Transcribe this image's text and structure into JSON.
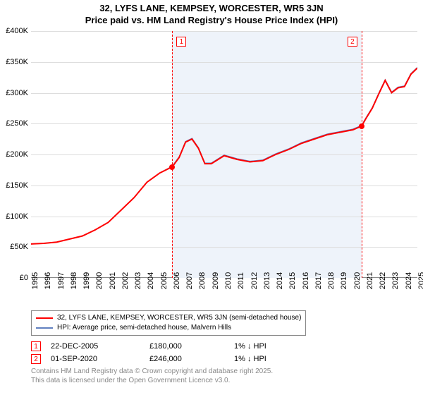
{
  "title_line1": "32, LYFS LANE, KEMPSEY, WORCESTER, WR5 3JN",
  "title_line2": "Price paid vs. HM Land Registry's House Price Index (HPI)",
  "chart": {
    "type": "line",
    "background_color": "#ffffff",
    "grid_color": "#dddddd",
    "shaded_region_color": "#eef3fa",
    "marker_line_style": "dashed",
    "marker_line_color": "#ff0000",
    "x_axis": {
      "min_year": 1995,
      "max_year": 2025,
      "tick_years": [
        1995,
        1996,
        1997,
        1998,
        1999,
        2000,
        2001,
        2002,
        2003,
        2004,
        2005,
        2006,
        2007,
        2008,
        2009,
        2010,
        2011,
        2012,
        2013,
        2014,
        2015,
        2016,
        2017,
        2018,
        2019,
        2020,
        2021,
        2022,
        2023,
        2024,
        2025
      ],
      "label_fontsize": 11,
      "label_rotation_deg": -90
    },
    "y_axis": {
      "min": 0,
      "max": 400000,
      "tick_step": 50000,
      "tick_labels": [
        "£0",
        "£50K",
        "£100K",
        "£150K",
        "£200K",
        "£250K",
        "£300K",
        "£350K",
        "£400K"
      ],
      "label_fontsize": 11
    },
    "series": [
      {
        "name": "property",
        "label": "32, LYFS LANE, KEMPSEY, WORCESTER, WR5 3JN (semi-detached house)",
        "color": "#ff0000",
        "line_width": 2,
        "points": [
          [
            1995,
            55000
          ],
          [
            1996,
            56000
          ],
          [
            1997,
            58000
          ],
          [
            1998,
            63000
          ],
          [
            1999,
            68000
          ],
          [
            2000,
            78000
          ],
          [
            2001,
            90000
          ],
          [
            2002,
            110000
          ],
          [
            2003,
            130000
          ],
          [
            2004,
            155000
          ],
          [
            2005,
            170000
          ],
          [
            2005.97,
            180000
          ],
          [
            2006.5,
            195000
          ],
          [
            2007,
            220000
          ],
          [
            2007.5,
            225000
          ],
          [
            2008,
            210000
          ],
          [
            2008.5,
            185000
          ],
          [
            2009,
            185000
          ],
          [
            2010,
            198000
          ],
          [
            2011,
            192000
          ],
          [
            2012,
            188000
          ],
          [
            2013,
            190000
          ],
          [
            2014,
            200000
          ],
          [
            2015,
            208000
          ],
          [
            2016,
            218000
          ],
          [
            2017,
            225000
          ],
          [
            2018,
            232000
          ],
          [
            2019,
            236000
          ],
          [
            2020,
            240000
          ],
          [
            2020.67,
            246000
          ],
          [
            2021,
            258000
          ],
          [
            2021.5,
            275000
          ],
          [
            2022,
            298000
          ],
          [
            2022.5,
            320000
          ],
          [
            2023,
            300000
          ],
          [
            2023.5,
            308000
          ],
          [
            2024,
            310000
          ],
          [
            2024.5,
            330000
          ],
          [
            2025,
            340000
          ]
        ]
      },
      {
        "name": "hpi",
        "label": "HPI: Average price, semi-detached house, Malvern Hills",
        "color": "#6080c0",
        "line_width": 1.5,
        "points": [
          [
            1995,
            55000
          ],
          [
            1996,
            56000
          ],
          [
            1997,
            58000
          ],
          [
            1998,
            63000
          ],
          [
            1999,
            68000
          ],
          [
            2000,
            78000
          ],
          [
            2001,
            90000
          ],
          [
            2002,
            110000
          ],
          [
            2003,
            130000
          ],
          [
            2004,
            155000
          ],
          [
            2005,
            170000
          ],
          [
            2005.97,
            181000
          ],
          [
            2006.5,
            196000
          ],
          [
            2007,
            221000
          ],
          [
            2007.5,
            226000
          ],
          [
            2008,
            211000
          ],
          [
            2008.5,
            186000
          ],
          [
            2009,
            186000
          ],
          [
            2010,
            199000
          ],
          [
            2011,
            193000
          ],
          [
            2012,
            189000
          ],
          [
            2013,
            191000
          ],
          [
            2014,
            201000
          ],
          [
            2015,
            209000
          ],
          [
            2016,
            219000
          ],
          [
            2017,
            226000
          ],
          [
            2018,
            233000
          ],
          [
            2019,
            237000
          ],
          [
            2020,
            241000
          ],
          [
            2020.67,
            247000
          ],
          [
            2021,
            259000
          ],
          [
            2021.5,
            276000
          ],
          [
            2022,
            299000
          ],
          [
            2022.5,
            321000
          ],
          [
            2023,
            301000
          ],
          [
            2023.5,
            309000
          ],
          [
            2024,
            311000
          ],
          [
            2024.5,
            331000
          ],
          [
            2025,
            341000
          ]
        ]
      }
    ],
    "event_markers": [
      {
        "id": "1",
        "year": 2005.97,
        "price": 180000,
        "dot_color": "#ff0000"
      },
      {
        "id": "2",
        "year": 2020.67,
        "price": 246000,
        "dot_color": "#ff0000"
      }
    ]
  },
  "legend": {
    "series1_label": "32, LYFS LANE, KEMPSEY, WORCESTER, WR5 3JN (semi-detached house)",
    "series2_label": "HPI: Average price, semi-detached house, Malvern Hills"
  },
  "events_table": [
    {
      "marker": "1",
      "date": "22-DEC-2005",
      "price": "£180,000",
      "diff": "1% ↓ HPI"
    },
    {
      "marker": "2",
      "date": "01-SEP-2020",
      "price": "£246,000",
      "diff": "1% ↓ HPI"
    }
  ],
  "footer_line1": "Contains HM Land Registry data © Crown copyright and database right 2025.",
  "footer_line2": "This data is licensed under the Open Government Licence v3.0."
}
